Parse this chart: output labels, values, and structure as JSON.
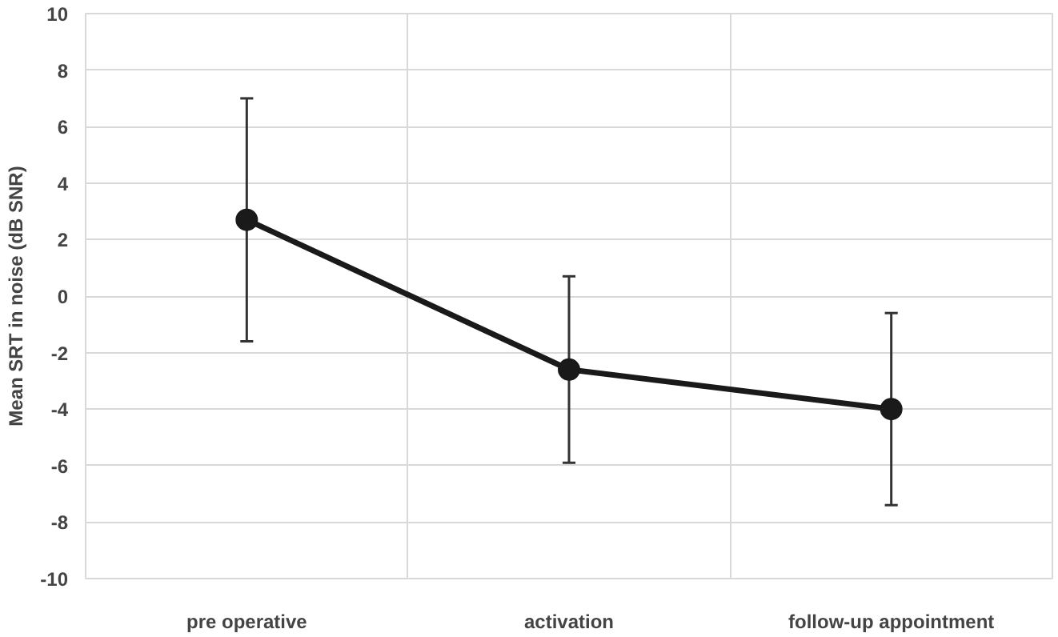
{
  "chart_data": {
    "type": "line",
    "ylabel": "Mean SRT in noise (dB SNR)",
    "categories": [
      "pre operative",
      "activation",
      "follow-up appointment"
    ],
    "values": [
      2.7,
      -2.6,
      -4.0
    ],
    "errors": [
      [
        -1.6,
        7.0
      ],
      [
        -5.9,
        0.7
      ],
      [
        -7.4,
        -0.6
      ]
    ],
    "color": "#1a1a1a",
    "marker": "circle",
    "line_style": "solid",
    "ylim": [
      -10,
      10
    ],
    "yticks": [
      -10,
      -8,
      -6,
      -4,
      -2,
      0,
      2,
      4,
      6,
      8,
      10
    ],
    "grid": true
  }
}
